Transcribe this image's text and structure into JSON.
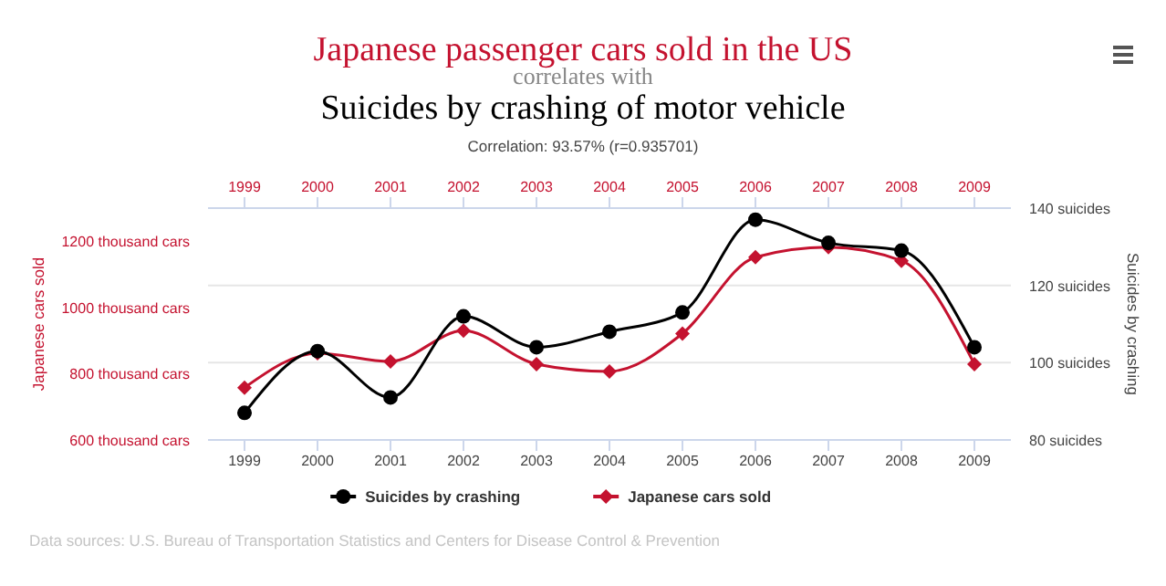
{
  "chart_data": {
    "type": "line",
    "title": "Japanese passenger cars sold in the US",
    "subtitle": "correlates with",
    "annotations": [
      "Suicides by crashing of motor vehicle",
      "Correlation: 93.57% (r=0.935701)",
      "Data sources: U.S. Bureau of Transportation Statistics and Centers for Disease Control & Prevention"
    ],
    "x": [
      1999,
      2000,
      2001,
      2002,
      2003,
      2004,
      2005,
      2006,
      2007,
      2008,
      2009
    ],
    "xlim": [
      1998.5,
      2009.5
    ],
    "xticks": [
      1999,
      2000,
      2001,
      2002,
      2003,
      2004,
      2005,
      2006,
      2007,
      2008,
      2009
    ],
    "x2lim": [
      1998.5,
      2009.5
    ],
    "x2ticks": [
      1999,
      2000,
      2001,
      2002,
      2003,
      2004,
      2005,
      2006,
      2007,
      2008,
      2009
    ],
    "ylabel": "Japanese cars sold",
    "y2label": "Suicides by crashing",
    "ylim": [
      600,
      1300
    ],
    "yticks": [
      {
        "value": 600,
        "label": "600 thousand cars"
      },
      {
        "value": 800,
        "label": "800 thousand cars"
      },
      {
        "value": 1000,
        "label": "1000 thousand cars"
      },
      {
        "value": 1200,
        "label": "1200 thousand cars"
      }
    ],
    "y2lim": [
      80,
      140
    ],
    "y2ticks": [
      {
        "value": 80,
        "label": "80 suicides"
      },
      {
        "value": 100,
        "label": "100 suicides"
      },
      {
        "value": 120,
        "label": "120 suicides"
      },
      {
        "value": 140,
        "label": "140 suicides"
      }
    ],
    "grid": "y2",
    "legend": "bottom",
    "series": [
      {
        "name": "Suicides by crashing",
        "color": "#000000",
        "axis": "y2",
        "marker": "circle",
        "values": [
          87,
          103,
          91,
          112,
          104,
          108,
          113,
          137,
          131,
          129,
          104
        ]
      },
      {
        "name": "Japanese cars sold",
        "color": "#c4122f",
        "axis": "y",
        "marker": "diamond",
        "values": [
          758,
          862,
          837,
          930,
          829,
          807,
          921,
          1152,
          1182,
          1141,
          829
        ]
      }
    ]
  }
}
